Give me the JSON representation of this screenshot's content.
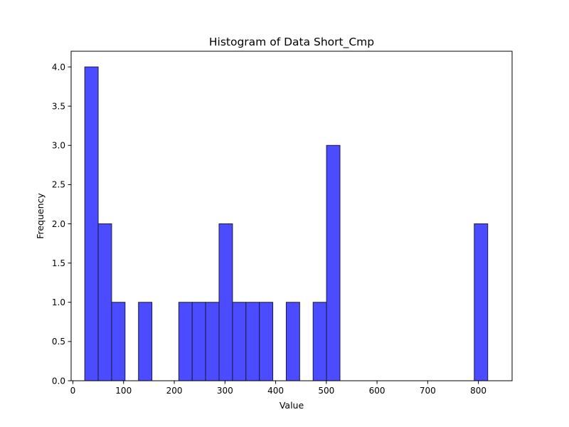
{
  "chart_data": {
    "type": "bar",
    "title": "Histogram of Data Short_Cmp",
    "xlabel": "Value",
    "ylabel": "Frequency",
    "xlim": [
      -3.5,
      866.5
    ],
    "ylim": [
      0,
      4.2
    ],
    "bin_width": 26.5,
    "bins": [
      {
        "start": 23.4,
        "end": 49.9,
        "count": 4
      },
      {
        "start": 49.9,
        "end": 76.4,
        "count": 2
      },
      {
        "start": 76.4,
        "end": 102.9,
        "count": 1
      },
      {
        "start": 102.9,
        "end": 129.4,
        "count": 0
      },
      {
        "start": 129.4,
        "end": 155.9,
        "count": 1
      },
      {
        "start": 155.9,
        "end": 182.4,
        "count": 0
      },
      {
        "start": 182.4,
        "end": 208.9,
        "count": 0
      },
      {
        "start": 208.9,
        "end": 235.4,
        "count": 1
      },
      {
        "start": 235.4,
        "end": 261.9,
        "count": 1
      },
      {
        "start": 261.9,
        "end": 288.4,
        "count": 1
      },
      {
        "start": 288.4,
        "end": 314.9,
        "count": 2
      },
      {
        "start": 314.9,
        "end": 341.4,
        "count": 1
      },
      {
        "start": 341.4,
        "end": 367.9,
        "count": 1
      },
      {
        "start": 367.9,
        "end": 394.4,
        "count": 1
      },
      {
        "start": 394.4,
        "end": 420.9,
        "count": 0
      },
      {
        "start": 420.9,
        "end": 447.4,
        "count": 1
      },
      {
        "start": 447.4,
        "end": 473.9,
        "count": 0
      },
      {
        "start": 473.9,
        "end": 500.4,
        "count": 1
      },
      {
        "start": 500.4,
        "end": 526.9,
        "count": 3
      },
      {
        "start": 526.9,
        "end": 553.4,
        "count": 0
      },
      {
        "start": 553.4,
        "end": 579.9,
        "count": 0
      },
      {
        "start": 579.9,
        "end": 606.4,
        "count": 0
      },
      {
        "start": 606.4,
        "end": 632.9,
        "count": 0
      },
      {
        "start": 632.9,
        "end": 659.4,
        "count": 0
      },
      {
        "start": 659.4,
        "end": 685.9,
        "count": 0
      },
      {
        "start": 685.9,
        "end": 712.4,
        "count": 0
      },
      {
        "start": 712.4,
        "end": 738.9,
        "count": 0
      },
      {
        "start": 738.9,
        "end": 765.4,
        "count": 0
      },
      {
        "start": 765.4,
        "end": 791.9,
        "count": 0
      },
      {
        "start": 791.9,
        "end": 818.4,
        "count": 2
      }
    ],
    "xticks": [
      0,
      100,
      200,
      300,
      400,
      500,
      600,
      700,
      800
    ],
    "xtick_labels": [
      "0",
      "100",
      "200",
      "300",
      "400",
      "500",
      "600",
      "700",
      "800"
    ],
    "yticks": [
      0,
      0.5,
      1,
      1.5,
      2,
      2.5,
      3,
      3.5,
      4
    ],
    "ytick_labels": [
      "0.0",
      "0.5",
      "1.0",
      "1.5",
      "2.0",
      "2.5",
      "3.0",
      "3.5",
      "4.0"
    ],
    "grid": false,
    "legend": false,
    "colors": {
      "bar_fill": "#4b4bff",
      "bar_edge": "#1a1a40"
    }
  }
}
